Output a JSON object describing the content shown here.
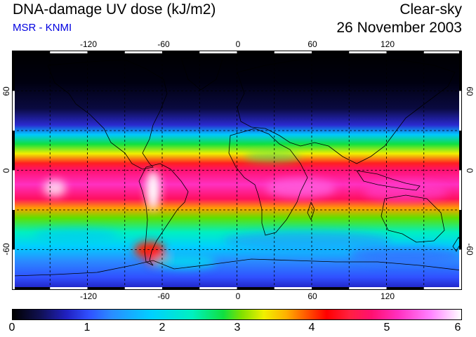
{
  "header": {
    "title": "DNA-damage UV dose (kJ/m2)",
    "source": "MSR - KNMI",
    "condition": "Clear-sky",
    "date": "26 November 2003"
  },
  "map": {
    "lon_range": [
      -180,
      180
    ],
    "lat_range": [
      -90,
      90
    ],
    "grid_longitudes": [
      -150,
      -120,
      -90,
      -60,
      -30,
      0,
      30,
      60,
      90,
      120,
      150
    ],
    "grid_latitudes": [
      60,
      30,
      0,
      -30,
      -60
    ],
    "lon_tick_labels": [
      "-120",
      "-60",
      "0",
      "60",
      "120"
    ],
    "lat_tick_labels": [
      "60",
      "0",
      "-60"
    ]
  },
  "colorbar": {
    "min": 0,
    "max": 6,
    "labels": [
      "0",
      "1",
      "2",
      "3",
      "4",
      "5",
      "6"
    ],
    "colors": [
      "#000000",
      "#2020c0",
      "#00d0ff",
      "#10e040",
      "#f0f000",
      "#ff0000",
      "#ff1070",
      "#ff80ff",
      "#ffffff"
    ]
  }
}
